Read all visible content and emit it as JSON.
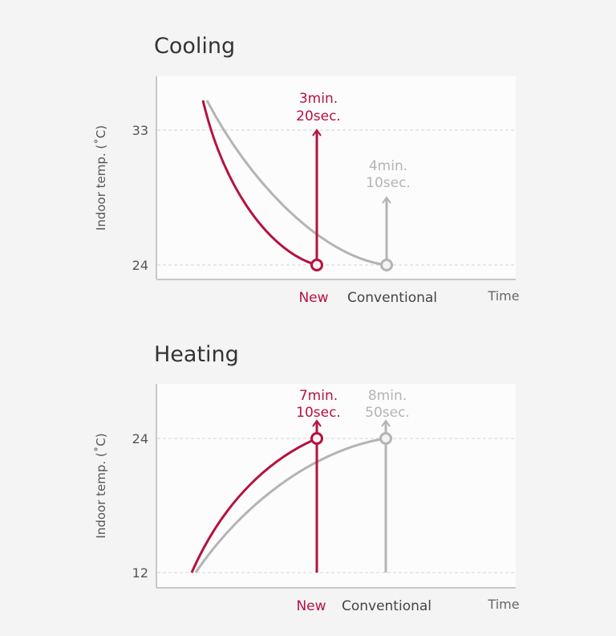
{
  "colors": {
    "new": "#b5123f",
    "conventional": "#b4b4b4",
    "background": "#f4f4f4",
    "panel": "#fcfcfc"
  },
  "chart_data": [
    {
      "type": "line",
      "title": "Cooling",
      "ylabel": "Indoor temp. (˚C)",
      "xlabel": "Time",
      "y_ticks": [
        "33",
        "24"
      ],
      "grid": "horizontal dashed",
      "x_categories": [
        "New",
        "Conventional"
      ],
      "series": [
        {
          "name": "New",
          "start_temp": 35,
          "target_temp": 24,
          "time_label": [
            "3min.",
            "20sec."
          ],
          "time_seconds": 200
        },
        {
          "name": "Conventional",
          "start_temp": 35,
          "target_temp": 24,
          "time_label": [
            "4min.",
            "10sec."
          ],
          "time_seconds": 250
        }
      ]
    },
    {
      "type": "line",
      "title": "Heating",
      "ylabel": "Indoor temp. (˚C)",
      "xlabel": "Time",
      "y_ticks": [
        "24",
        "12"
      ],
      "grid": "horizontal dashed",
      "x_categories": [
        "New",
        "Conventional"
      ],
      "series": [
        {
          "name": "New",
          "start_temp": 12,
          "target_temp": 24,
          "time_label": [
            "7min.",
            "10sec."
          ],
          "time_seconds": 430
        },
        {
          "name": "Conventional",
          "start_temp": 12,
          "target_temp": 24,
          "time_label": [
            "8min.",
            "50sec."
          ],
          "time_seconds": 530
        }
      ]
    }
  ]
}
